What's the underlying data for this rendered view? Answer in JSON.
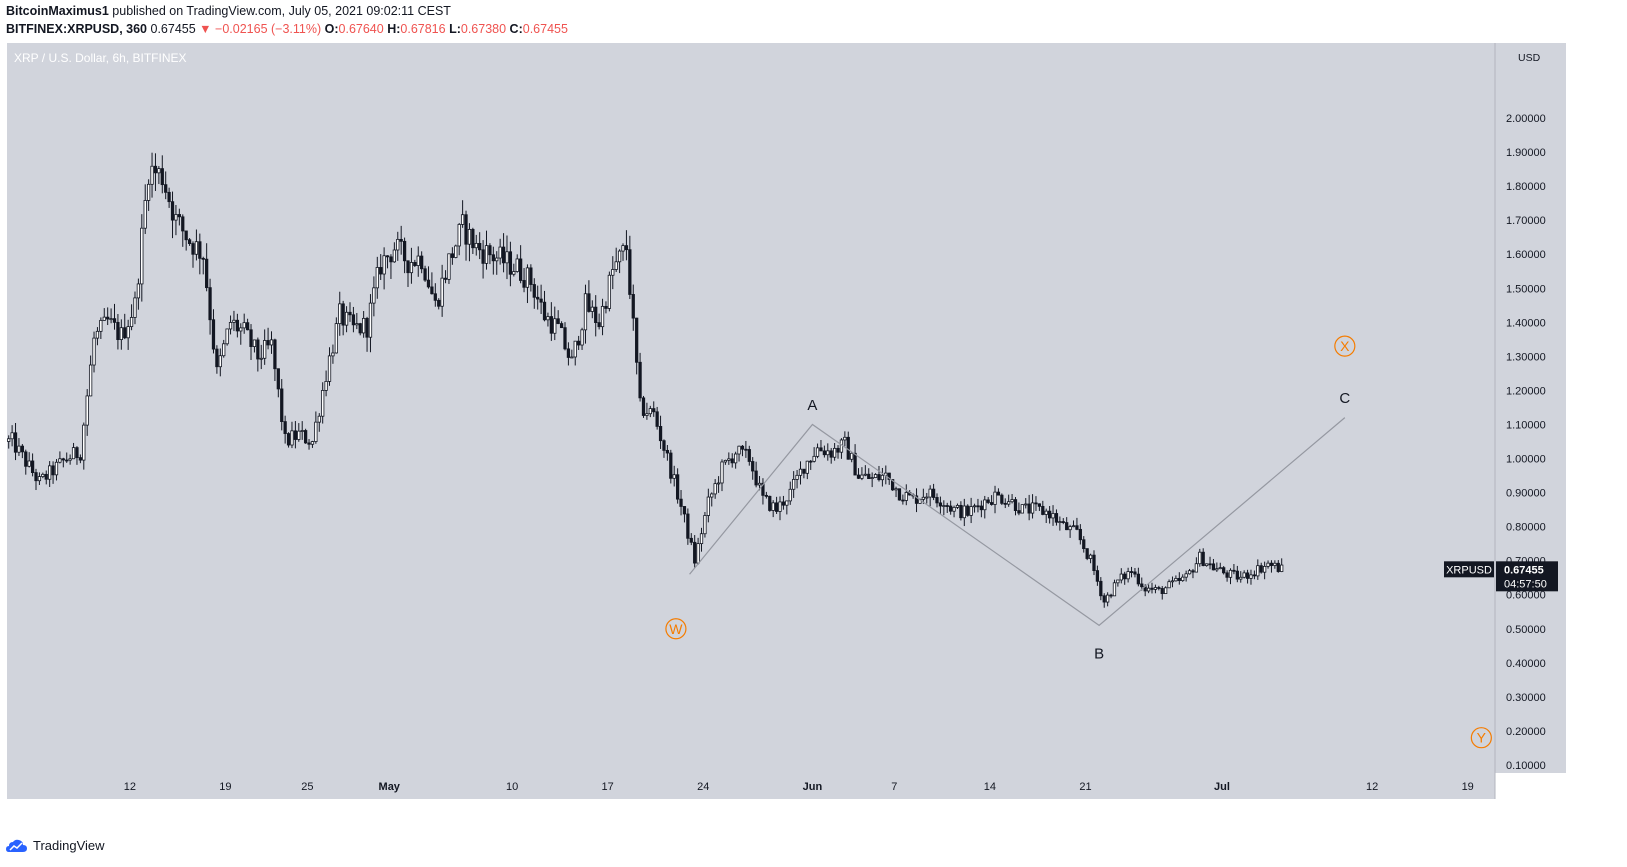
{
  "header": {
    "author": "BitcoinMaximus1",
    "published": "published on TradingView.com, July 05, 2021 09:02:11 CEST",
    "symbol": "BITFINEX:XRPUSD, 360",
    "last": "0.67455",
    "change_arrow": "▼",
    "change": "−0.02165 (−3.11%)",
    "o_label": "O:",
    "o_value": "0.67640",
    "h_label": "H:",
    "h_value": "0.67816",
    "l_label": "L:",
    "l_value": "0.67380",
    "c_label": "C:",
    "c_value": "0.67455"
  },
  "footer": {
    "brand": "TradingView"
  },
  "colors": {
    "plot_bg": "#d1d4dc",
    "candle": "#131722",
    "wave_line": "#9598a1",
    "orange": "#f57c00",
    "red": "#ef5350",
    "axis_text": "#131722",
    "price_tag_bg": "#131722"
  },
  "chart_data": {
    "type": "candlestick",
    "title": "XRP / U.S. Dollar, 6h, BITFINEX",
    "ylabel": "USD",
    "ylim": [
      0,
      2.1
    ],
    "y_ticks": [
      "0.10000",
      "0.20000",
      "0.30000",
      "0.40000",
      "0.50000",
      "0.60000",
      "0.70000",
      "0.80000",
      "0.90000",
      "1.00000",
      "1.10000",
      "1.20000",
      "1.30000",
      "1.40000",
      "1.50000",
      "1.60000",
      "1.70000",
      "1.80000",
      "1.90000",
      "2.00000"
    ],
    "y_tick_values": [
      0.1,
      0.2,
      0.3,
      0.4,
      0.5,
      0.6,
      0.7,
      0.8,
      0.9,
      1.0,
      1.1,
      1.2,
      1.3,
      1.4,
      1.5,
      1.6,
      1.7,
      1.8,
      1.9,
      2.0
    ],
    "x_axis_start": "2021-04-03",
    "x_axis_end": "2021-07-21",
    "x_ticks": [
      {
        "label": "12",
        "date": "2021-04-12"
      },
      {
        "label": "19",
        "date": "2021-04-19"
      },
      {
        "label": "25",
        "date": "2021-04-25"
      },
      {
        "label": "May",
        "date": "2021-05-01"
      },
      {
        "label": "10",
        "date": "2021-05-10"
      },
      {
        "label": "17",
        "date": "2021-05-17"
      },
      {
        "label": "24",
        "date": "2021-05-24"
      },
      {
        "label": "Jun",
        "date": "2021-06-01"
      },
      {
        "label": "7",
        "date": "2021-06-07"
      },
      {
        "label": "14",
        "date": "2021-06-14"
      },
      {
        "label": "21",
        "date": "2021-06-21"
      },
      {
        "label": "Jul",
        "date": "2021-07-01"
      },
      {
        "label": "12",
        "date": "2021-07-12"
      },
      {
        "label": "19",
        "date": "2021-07-19"
      }
    ],
    "price_anchors": [
      {
        "date": "2021-04-03",
        "price": 1.05
      },
      {
        "date": "2021-04-05",
        "price": 0.93
      },
      {
        "date": "2021-04-07",
        "price": 1.0
      },
      {
        "date": "2021-04-08",
        "price": 1.02
      },
      {
        "date": "2021-04-09",
        "price": 1.35
      },
      {
        "date": "2021-04-10",
        "price": 1.4
      },
      {
        "date": "2021-04-11",
        "price": 1.36
      },
      {
        "date": "2021-04-12",
        "price": 1.45
      },
      {
        "date": "2021-04-13",
        "price": 1.85
      },
      {
        "date": "2021-04-14",
        "price": 1.83
      },
      {
        "date": "2021-04-15",
        "price": 1.7
      },
      {
        "date": "2021-04-16",
        "price": 1.64
      },
      {
        "date": "2021-04-17",
        "price": 1.6
      },
      {
        "date": "2021-04-18",
        "price": 1.25
      },
      {
        "date": "2021-04-19",
        "price": 1.4
      },
      {
        "date": "2021-04-20",
        "price": 1.37
      },
      {
        "date": "2021-04-21",
        "price": 1.3
      },
      {
        "date": "2021-04-22",
        "price": 1.33
      },
      {
        "date": "2021-04-23",
        "price": 1.05
      },
      {
        "date": "2021-04-24",
        "price": 1.07
      },
      {
        "date": "2021-04-25",
        "price": 1.05
      },
      {
        "date": "2021-04-26",
        "price": 1.25
      },
      {
        "date": "2021-04-27",
        "price": 1.42
      },
      {
        "date": "2021-04-28",
        "price": 1.38
      },
      {
        "date": "2021-04-29",
        "price": 1.39
      },
      {
        "date": "2021-04-30",
        "price": 1.57
      },
      {
        "date": "2021-05-01",
        "price": 1.62
      },
      {
        "date": "2021-05-02",
        "price": 1.58
      },
      {
        "date": "2021-05-03",
        "price": 1.59
      },
      {
        "date": "2021-05-04",
        "price": 1.45
      },
      {
        "date": "2021-05-05",
        "price": 1.58
      },
      {
        "date": "2021-05-06",
        "price": 1.68
      },
      {
        "date": "2021-05-07",
        "price": 1.62
      },
      {
        "date": "2021-05-08",
        "price": 1.6
      },
      {
        "date": "2021-05-09",
        "price": 1.58
      },
      {
        "date": "2021-05-10",
        "price": 1.56
      },
      {
        "date": "2021-05-11",
        "price": 1.52
      },
      {
        "date": "2021-05-12",
        "price": 1.42
      },
      {
        "date": "2021-05-13",
        "price": 1.38
      },
      {
        "date": "2021-05-14",
        "price": 1.28
      },
      {
        "date": "2021-05-15",
        "price": 1.45
      },
      {
        "date": "2021-05-16",
        "price": 1.4
      },
      {
        "date": "2021-05-17",
        "price": 1.55
      },
      {
        "date": "2021-05-18",
        "price": 1.62
      },
      {
        "date": "2021-05-19",
        "price": 1.15
      },
      {
        "date": "2021-05-20",
        "price": 1.13
      },
      {
        "date": "2021-05-21",
        "price": 1.0
      },
      {
        "date": "2021-05-22",
        "price": 0.86
      },
      {
        "date": "2021-05-23",
        "price": 0.7
      },
      {
        "date": "2021-05-24",
        "price": 0.87
      },
      {
        "date": "2021-05-25",
        "price": 0.97
      },
      {
        "date": "2021-05-26",
        "price": 1.02
      },
      {
        "date": "2021-05-27",
        "price": 1.0
      },
      {
        "date": "2021-05-28",
        "price": 0.88
      },
      {
        "date": "2021-05-29",
        "price": 0.85
      },
      {
        "date": "2021-05-30",
        "price": 0.9
      },
      {
        "date": "2021-05-31",
        "price": 0.98
      },
      {
        "date": "2021-06-01",
        "price": 1.03
      },
      {
        "date": "2021-06-02",
        "price": 1.02
      },
      {
        "date": "2021-06-03",
        "price": 1.04
      },
      {
        "date": "2021-06-04",
        "price": 0.95
      },
      {
        "date": "2021-06-05",
        "price": 0.94
      },
      {
        "date": "2021-06-06",
        "price": 0.95
      },
      {
        "date": "2021-06-07",
        "price": 0.9
      },
      {
        "date": "2021-06-08",
        "price": 0.88
      },
      {
        "date": "2021-06-09",
        "price": 0.9
      },
      {
        "date": "2021-06-10",
        "price": 0.88
      },
      {
        "date": "2021-06-11",
        "price": 0.85
      },
      {
        "date": "2021-06-12",
        "price": 0.84
      },
      {
        "date": "2021-06-13",
        "price": 0.87
      },
      {
        "date": "2021-06-14",
        "price": 0.89
      },
      {
        "date": "2021-06-15",
        "price": 0.88
      },
      {
        "date": "2021-06-16",
        "price": 0.85
      },
      {
        "date": "2021-06-17",
        "price": 0.85
      },
      {
        "date": "2021-06-18",
        "price": 0.84
      },
      {
        "date": "2021-06-19",
        "price": 0.8
      },
      {
        "date": "2021-06-20",
        "price": 0.78
      },
      {
        "date": "2021-06-21",
        "price": 0.7
      },
      {
        "date": "2021-06-22",
        "price": 0.58
      },
      {
        "date": "2021-06-23",
        "price": 0.64
      },
      {
        "date": "2021-06-24",
        "price": 0.67
      },
      {
        "date": "2021-06-25",
        "price": 0.62
      },
      {
        "date": "2021-06-26",
        "price": 0.61
      },
      {
        "date": "2021-06-27",
        "price": 0.63
      },
      {
        "date": "2021-06-28",
        "price": 0.65
      },
      {
        "date": "2021-06-29",
        "price": 0.71
      },
      {
        "date": "2021-06-30",
        "price": 0.68
      },
      {
        "date": "2021-07-01",
        "price": 0.66
      },
      {
        "date": "2021-07-02",
        "price": 0.65
      },
      {
        "date": "2021-07-03",
        "price": 0.67
      },
      {
        "date": "2021-07-04",
        "price": 0.69
      },
      {
        "date": "2021-07-05",
        "price": 0.675
      }
    ],
    "wave_path": [
      {
        "date": "2021-05-23",
        "price": 0.66
      },
      {
        "date": "2021-06-01",
        "price": 1.1
      },
      {
        "date": "2021-06-22",
        "price": 0.51
      },
      {
        "date": "2021-07-10",
        "price": 1.12
      }
    ],
    "annotations": [
      {
        "label": "A",
        "date": "2021-06-01",
        "price": 1.16,
        "style": "plain"
      },
      {
        "label": "B",
        "date": "2021-06-22",
        "price": 0.43,
        "style": "plain"
      },
      {
        "label": "C",
        "date": "2021-07-10",
        "price": 1.18,
        "style": "plain"
      },
      {
        "label": "W",
        "date": "2021-05-22",
        "price": 0.5,
        "style": "circled"
      },
      {
        "label": "X",
        "date": "2021-07-10",
        "price": 1.33,
        "style": "circled"
      },
      {
        "label": "Y",
        "date": "2021-07-20",
        "price": 0.18,
        "style": "circled"
      }
    ],
    "last_price": {
      "symbol": "XRPUSD",
      "price": 0.67455,
      "label": "0.67455",
      "countdown": "04:57:50"
    }
  }
}
